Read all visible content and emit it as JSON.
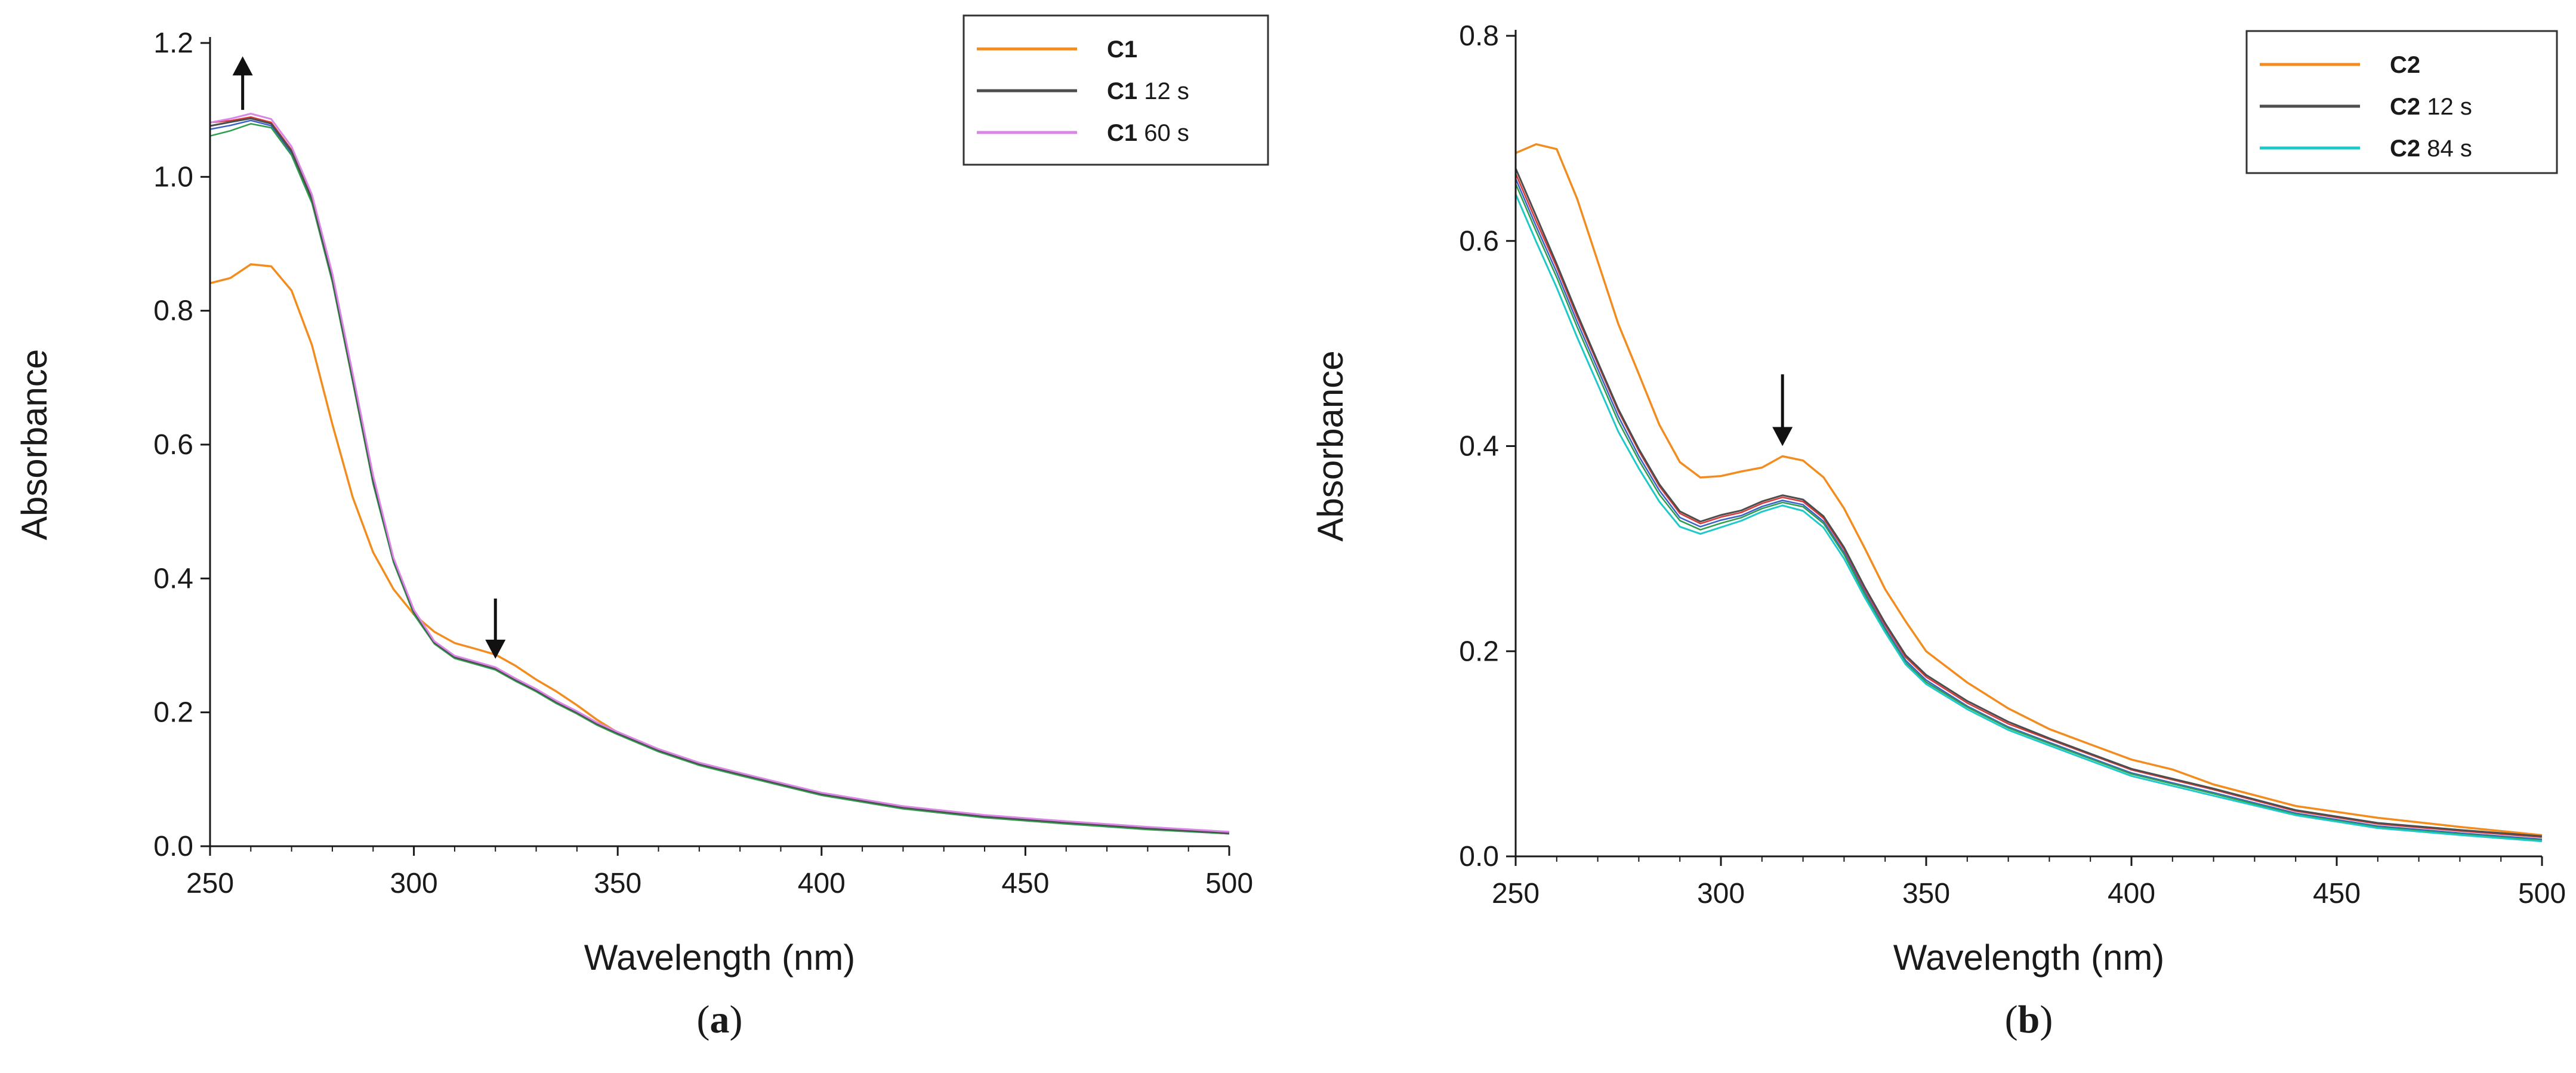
{
  "colors": {
    "initial": "#f28c1e",
    "step_12s": "#4d4d4d",
    "end_c1": "#d986e6",
    "end_c2": "#1fc9c9",
    "red": "#d9383a",
    "blue": "#3a62c8",
    "green": "#2e9d4e",
    "teal": "#2bb5b0",
    "purple": "#8a59c9"
  },
  "chart_data": [
    {
      "panel_label_pre": "(",
      "panel_label": "a",
      "panel_label_post": ")",
      "type": "line",
      "xlabel": "Wavelength (nm)",
      "ylabel": "Absorbance",
      "xlim": [
        250,
        500
      ],
      "ylim": [
        0,
        1.2
      ],
      "xticks": [
        250,
        300,
        350,
        400,
        450,
        500
      ],
      "xtick_labels": [
        "250",
        "300",
        "350",
        "400",
        "450",
        "500"
      ],
      "yticks": [
        0.0,
        0.2,
        0.4,
        0.6,
        0.8,
        1.0,
        1.2
      ],
      "ytick_labels": [
        "0.0",
        "0.2",
        "0.4",
        "0.6",
        "0.8",
        "1.0",
        "1.2"
      ],
      "grid": false,
      "legend_position": "top-right",
      "legend": [
        {
          "bold": "C1",
          "rest": "",
          "color": "#f28c1e"
        },
        {
          "bold": "C1",
          "rest": " 12 s",
          "color": "#4d4d4d"
        },
        {
          "bold": "C1",
          "rest": " 60 s",
          "color": "#d986e6"
        }
      ],
      "annotations": [
        {
          "type": "arrow-up",
          "x": 258,
          "y_from": 1.1,
          "y_to": 1.18
        },
        {
          "type": "arrow-down",
          "x": 320,
          "y_from": 0.37,
          "y_to": 0.28
        }
      ],
      "series": [
        {
          "color": "#f28c1e",
          "width": 3.5,
          "x": [
            250,
            255,
            260,
            265,
            270,
            275,
            280,
            285,
            290,
            295,
            300,
            305,
            310,
            315,
            320,
            325,
            330,
            335,
            340,
            345,
            350,
            360,
            370,
            380,
            390,
            400,
            420,
            440,
            460,
            480,
            500
          ],
          "y": [
            0.84,
            0.85,
            0.87,
            0.865,
            0.83,
            0.75,
            0.63,
            0.52,
            0.44,
            0.385,
            0.345,
            0.32,
            0.305,
            0.295,
            0.285,
            0.27,
            0.25,
            0.23,
            0.21,
            0.19,
            0.17,
            0.145,
            0.125,
            0.11,
            0.095,
            0.08,
            0.06,
            0.045,
            0.035,
            0.028,
            0.022
          ]
        },
        {
          "color": "#d9383a",
          "width": 2.5,
          "x": [
            250,
            255,
            260,
            265,
            270,
            275,
            280,
            285,
            290,
            295,
            300,
            305,
            310,
            315,
            320,
            325,
            330,
            335,
            340,
            345,
            350,
            360,
            370,
            380,
            390,
            400,
            420,
            440,
            460,
            480,
            500
          ],
          "y": [
            1.08,
            1.085,
            1.09,
            1.08,
            1.04,
            0.97,
            0.85,
            0.7,
            0.55,
            0.43,
            0.35,
            0.305,
            0.285,
            0.275,
            0.265,
            0.25,
            0.235,
            0.215,
            0.2,
            0.185,
            0.17,
            0.145,
            0.125,
            0.11,
            0.095,
            0.08,
            0.06,
            0.045,
            0.035,
            0.028,
            0.022
          ]
        },
        {
          "color": "#3a62c8",
          "width": 2.5,
          "x": [
            250,
            255,
            260,
            265,
            270,
            275,
            280,
            285,
            290,
            295,
            300,
            305,
            310,
            315,
            320,
            325,
            330,
            335,
            340,
            345,
            350,
            360,
            370,
            380,
            390,
            400,
            420,
            440,
            460,
            480,
            500
          ],
          "y": [
            1.07,
            1.078,
            1.085,
            1.075,
            1.035,
            0.965,
            0.845,
            0.695,
            0.545,
            0.427,
            0.347,
            0.303,
            0.283,
            0.273,
            0.263,
            0.248,
            0.233,
            0.213,
            0.198,
            0.183,
            0.168,
            0.143,
            0.123,
            0.108,
            0.093,
            0.078,
            0.058,
            0.043,
            0.033,
            0.026,
            0.02
          ]
        },
        {
          "color": "#2e9d4e",
          "width": 2.5,
          "x": [
            250,
            255,
            260,
            265,
            270,
            275,
            280,
            285,
            290,
            295,
            300,
            305,
            310,
            315,
            320,
            325,
            330,
            335,
            340,
            345,
            350,
            360,
            370,
            380,
            390,
            400,
            420,
            440,
            460,
            480,
            500
          ],
          "y": [
            1.06,
            1.07,
            1.08,
            1.072,
            1.032,
            0.962,
            0.842,
            0.692,
            0.542,
            0.425,
            0.345,
            0.302,
            0.282,
            0.272,
            0.262,
            0.247,
            0.232,
            0.212,
            0.197,
            0.182,
            0.167,
            0.142,
            0.122,
            0.107,
            0.092,
            0.077,
            0.057,
            0.042,
            0.032,
            0.025,
            0.02
          ]
        },
        {
          "color": "#4d4d4d",
          "width": 3,
          "x": [
            250,
            255,
            260,
            265,
            270,
            275,
            280,
            285,
            290,
            295,
            300,
            305,
            310,
            315,
            320,
            325,
            330,
            335,
            340,
            345,
            350,
            360,
            370,
            380,
            390,
            400,
            420,
            440,
            460,
            480,
            500
          ],
          "y": [
            1.075,
            1.083,
            1.088,
            1.078,
            1.038,
            0.968,
            0.848,
            0.698,
            0.548,
            0.429,
            0.349,
            0.304,
            0.284,
            0.274,
            0.264,
            0.249,
            0.234,
            0.214,
            0.199,
            0.184,
            0.169,
            0.144,
            0.124,
            0.109,
            0.094,
            0.079,
            0.059,
            0.044,
            0.034,
            0.027,
            0.021
          ]
        },
        {
          "color": "#d986e6",
          "width": 3,
          "x": [
            250,
            255,
            260,
            265,
            270,
            275,
            280,
            285,
            290,
            295,
            300,
            305,
            310,
            315,
            320,
            325,
            330,
            335,
            340,
            345,
            350,
            360,
            370,
            380,
            390,
            400,
            420,
            440,
            460,
            480,
            500
          ],
          "y": [
            1.08,
            1.088,
            1.095,
            1.085,
            1.045,
            0.975,
            0.855,
            0.705,
            0.555,
            0.432,
            0.352,
            0.306,
            0.286,
            0.276,
            0.266,
            0.251,
            0.236,
            0.216,
            0.201,
            0.186,
            0.171,
            0.146,
            0.126,
            0.111,
            0.096,
            0.081,
            0.061,
            0.046,
            0.036,
            0.029,
            0.023
          ]
        }
      ]
    },
    {
      "panel_label_pre": "(",
      "panel_label": "b",
      "panel_label_post": ")",
      "type": "line",
      "xlabel": "Wavelength (nm)",
      "ylabel": "Absorbance",
      "xlim": [
        250,
        500
      ],
      "ylim": [
        0,
        0.8
      ],
      "xticks": [
        250,
        300,
        350,
        400,
        450,
        500
      ],
      "xtick_labels": [
        "250",
        "300",
        "350",
        "400",
        "450",
        "500"
      ],
      "yticks": [
        0.0,
        0.2,
        0.4,
        0.6,
        0.8
      ],
      "ytick_labels": [
        "0.0",
        "0.2",
        "0.4",
        "0.6",
        "0.8"
      ],
      "grid": false,
      "legend_position": "top-right",
      "legend": [
        {
          "bold": "C2",
          "rest": "",
          "color": "#f28c1e"
        },
        {
          "bold": "C2",
          "rest": " 12 s",
          "color": "#4d4d4d"
        },
        {
          "bold": "C2",
          "rest": " 84 s",
          "color": "#1fc9c9"
        }
      ],
      "annotations": [
        {
          "type": "arrow-down",
          "x": 315,
          "y_from": 0.47,
          "y_to": 0.4
        }
      ],
      "series": [
        {
          "color": "#f28c1e",
          "width": 3.5,
          "x": [
            250,
            255,
            260,
            265,
            270,
            275,
            280,
            285,
            290,
            295,
            300,
            305,
            310,
            315,
            320,
            325,
            330,
            335,
            340,
            345,
            350,
            360,
            370,
            380,
            390,
            400,
            410,
            420,
            440,
            460,
            480,
            500
          ],
          "y": [
            0.685,
            0.695,
            0.69,
            0.64,
            0.58,
            0.52,
            0.47,
            0.42,
            0.385,
            0.37,
            0.37,
            0.375,
            0.38,
            0.39,
            0.385,
            0.37,
            0.34,
            0.3,
            0.26,
            0.23,
            0.2,
            0.17,
            0.145,
            0.125,
            0.11,
            0.095,
            0.085,
            0.07,
            0.05,
            0.038,
            0.028,
            0.02
          ]
        },
        {
          "color": "#d9383a",
          "width": 2.5,
          "x": [
            250,
            255,
            260,
            265,
            270,
            275,
            280,
            285,
            290,
            295,
            300,
            305,
            310,
            315,
            320,
            325,
            330,
            335,
            340,
            345,
            350,
            360,
            370,
            380,
            390,
            400,
            410,
            420,
            440,
            460,
            480,
            500
          ],
          "y": [
            0.665,
            0.62,
            0.575,
            0.525,
            0.48,
            0.435,
            0.395,
            0.36,
            0.335,
            0.325,
            0.33,
            0.335,
            0.345,
            0.35,
            0.345,
            0.33,
            0.3,
            0.26,
            0.225,
            0.195,
            0.175,
            0.15,
            0.13,
            0.115,
            0.1,
            0.085,
            0.075,
            0.065,
            0.045,
            0.032,
            0.024,
            0.018
          ]
        },
        {
          "color": "#3a62c8",
          "width": 2.5,
          "x": [
            250,
            255,
            260,
            265,
            270,
            275,
            280,
            285,
            290,
            295,
            300,
            305,
            310,
            315,
            320,
            325,
            330,
            335,
            340,
            345,
            350,
            360,
            370,
            380,
            390,
            400,
            410,
            420,
            440,
            460,
            480,
            500
          ],
          "y": [
            0.66,
            0.615,
            0.57,
            0.52,
            0.475,
            0.43,
            0.39,
            0.356,
            0.331,
            0.322,
            0.327,
            0.332,
            0.342,
            0.347,
            0.342,
            0.327,
            0.297,
            0.257,
            0.222,
            0.192,
            0.172,
            0.147,
            0.127,
            0.112,
            0.097,
            0.082,
            0.072,
            0.062,
            0.043,
            0.03,
            0.022,
            0.016
          ]
        },
        {
          "color": "#2e9d4e",
          "width": 2.5,
          "x": [
            250,
            255,
            260,
            265,
            270,
            275,
            280,
            285,
            290,
            295,
            300,
            305,
            310,
            315,
            320,
            325,
            330,
            335,
            340,
            345,
            350,
            360,
            370,
            380,
            390,
            400,
            410,
            420,
            440,
            460,
            480,
            500
          ],
          "y": [
            0.655,
            0.61,
            0.565,
            0.515,
            0.47,
            0.425,
            0.386,
            0.352,
            0.328,
            0.319,
            0.324,
            0.33,
            0.34,
            0.345,
            0.34,
            0.325,
            0.295,
            0.255,
            0.22,
            0.19,
            0.17,
            0.146,
            0.126,
            0.111,
            0.096,
            0.081,
            0.071,
            0.061,
            0.042,
            0.029,
            0.021,
            0.015
          ]
        },
        {
          "color": "#4d4d4d",
          "width": 3,
          "x": [
            250,
            255,
            260,
            265,
            270,
            275,
            280,
            285,
            290,
            295,
            300,
            305,
            310,
            315,
            320,
            325,
            330,
            335,
            340,
            345,
            350,
            360,
            370,
            380,
            390,
            400,
            410,
            420,
            440,
            460,
            480,
            500
          ],
          "y": [
            0.67,
            0.625,
            0.578,
            0.528,
            0.482,
            0.437,
            0.397,
            0.362,
            0.337,
            0.327,
            0.332,
            0.337,
            0.347,
            0.352,
            0.347,
            0.332,
            0.302,
            0.262,
            0.227,
            0.197,
            0.177,
            0.152,
            0.132,
            0.116,
            0.101,
            0.086,
            0.076,
            0.066,
            0.046,
            0.033,
            0.025,
            0.019
          ]
        },
        {
          "color": "#1fc9c9",
          "width": 3,
          "x": [
            250,
            255,
            260,
            265,
            270,
            275,
            280,
            285,
            290,
            295,
            300,
            305,
            310,
            315,
            320,
            325,
            330,
            335,
            340,
            345,
            350,
            360,
            370,
            380,
            390,
            400,
            410,
            420,
            440,
            460,
            480,
            500
          ],
          "y": [
            0.645,
            0.6,
            0.555,
            0.505,
            0.46,
            0.415,
            0.378,
            0.345,
            0.322,
            0.315,
            0.32,
            0.327,
            0.337,
            0.342,
            0.336,
            0.321,
            0.291,
            0.252,
            0.218,
            0.188,
            0.168,
            0.144,
            0.124,
            0.109,
            0.094,
            0.079,
            0.069,
            0.059,
            0.041,
            0.028,
            0.02,
            0.014
          ]
        }
      ]
    }
  ]
}
